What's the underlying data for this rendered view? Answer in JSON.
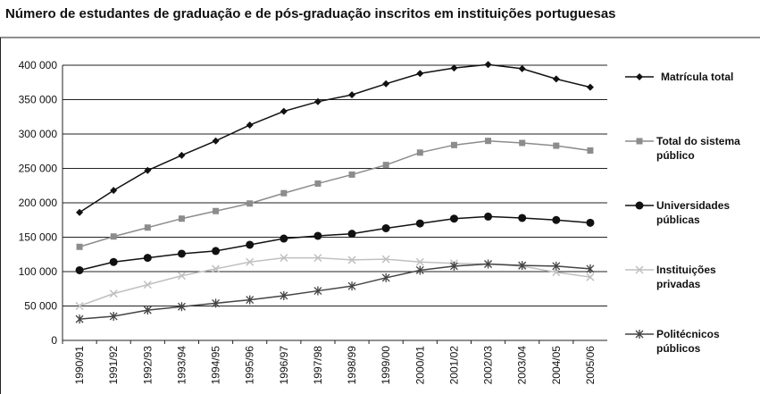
{
  "chart_data": {
    "type": "line",
    "title": "Número de estudantes de graduação e de pós-graduação inscritos em instituições portuguesas",
    "categories": [
      "1990/91",
      "1991/92",
      "1992/93",
      "1993/94",
      "1994/95",
      "1995/96",
      "1996/97",
      "1997/98",
      "1998/99",
      "1999/00",
      "2000/01",
      "2001/02",
      "2002/03",
      "2003/04",
      "2004/05",
      "2005/06"
    ],
    "series": [
      {
        "name": "Matrícula total",
        "color": "#111111",
        "marker": "diamond",
        "values": [
          186000,
          218000,
          247000,
          269000,
          290000,
          313000,
          333000,
          347000,
          357000,
          373000,
          388000,
          396000,
          401000,
          395000,
          380000,
          368000
        ]
      },
      {
        "name": "Total do sistema público",
        "color": "#8c8c8c",
        "marker": "square",
        "values": [
          136000,
          151000,
          164000,
          177000,
          188000,
          199000,
          214000,
          228000,
          241000,
          255000,
          273000,
          284000,
          290000,
          287000,
          283000,
          276000
        ]
      },
      {
        "name": "Universidades públicas",
        "color": "#111111",
        "marker": "circle",
        "values": [
          102000,
          114000,
          120000,
          126000,
          130000,
          139000,
          148000,
          152000,
          155000,
          163000,
          170000,
          177000,
          180000,
          178000,
          175000,
          171000
        ]
      },
      {
        "name": "Instituições privadas",
        "color": "#c0c0c0",
        "marker": "x",
        "values": [
          50000,
          68000,
          81000,
          94000,
          104000,
          114000,
          120000,
          120000,
          117000,
          118000,
          114000,
          112000,
          111000,
          108000,
          99000,
          92000
        ]
      },
      {
        "name": "Politécnicos públicos",
        "color": "#444444",
        "marker": "star",
        "values": [
          31000,
          35000,
          44000,
          49000,
          54000,
          59000,
          65000,
          72000,
          79000,
          91000,
          102000,
          108000,
          111000,
          109000,
          108000,
          104000
        ]
      }
    ],
    "ylim": [
      0,
      400000
    ],
    "yticks": [
      0,
      {
        "value": 50000,
        "label": "50 000"
      },
      {
        "value": 100000,
        "label": "100 000"
      },
      {
        "value": 150000,
        "label": "150 000"
      },
      {
        "value": 200000,
        "label": "200 000"
      },
      {
        "value": 250000,
        "label": "250 000"
      },
      {
        "value": 300000,
        "label": "300 000"
      },
      {
        "value": 350000,
        "label": "350 000"
      },
      {
        "value": 400000,
        "label": "400 000"
      }
    ],
    "grid": true,
    "legend": "right"
  }
}
